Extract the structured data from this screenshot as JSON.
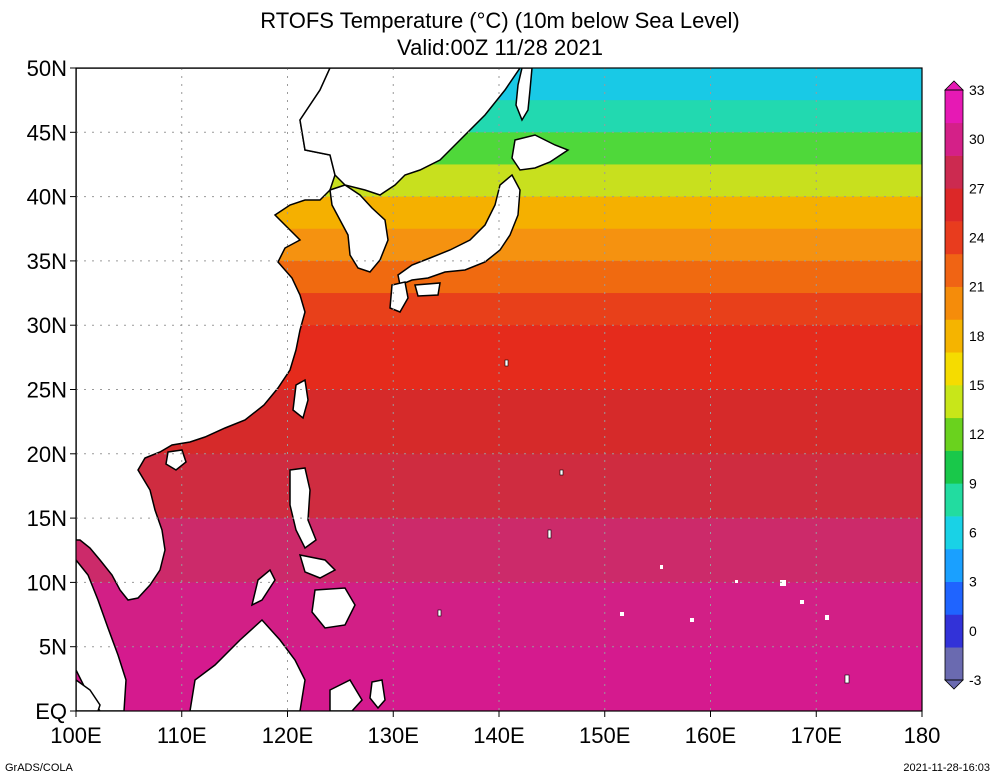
{
  "title": "RTOFS Temperature (°C) (10m below Sea Level)",
  "subtitle": "Valid:00Z 11/28 2021",
  "footer_left": "GrADS/COLA",
  "footer_right": "2021-11-28-16:03",
  "map": {
    "lon_range": [
      100,
      180
    ],
    "lat_range": [
      0,
      50
    ],
    "y_ticks": [
      {
        "lat": 50,
        "label": "50N"
      },
      {
        "lat": 45,
        "label": "45N"
      },
      {
        "lat": 40,
        "label": "40N"
      },
      {
        "lat": 35,
        "label": "35N"
      },
      {
        "lat": 30,
        "label": "30N"
      },
      {
        "lat": 25,
        "label": "25N"
      },
      {
        "lat": 20,
        "label": "20N"
      },
      {
        "lat": 15,
        "label": "15N"
      },
      {
        "lat": 10,
        "label": "10N"
      },
      {
        "lat": 5,
        "label": "5N"
      },
      {
        "lat": 0,
        "label": "EQ"
      }
    ],
    "x_ticks": [
      {
        "lon": 100,
        "label": "100E"
      },
      {
        "lon": 110,
        "label": "110E"
      },
      {
        "lon": 120,
        "label": "120E"
      },
      {
        "lon": 130,
        "label": "130E"
      },
      {
        "lon": 140,
        "label": "140E"
      },
      {
        "lon": 150,
        "label": "150E"
      },
      {
        "lon": 160,
        "label": "160E"
      },
      {
        "lon": 170,
        "label": "170E"
      },
      {
        "lon": 180,
        "label": "180"
      }
    ],
    "temperature_bands": [
      {
        "lat": [
          47.5,
          50
        ],
        "temp": 6,
        "color": "#19c9e6"
      },
      {
        "lat": [
          45,
          47.5
        ],
        "temp": 8,
        "color": "#22d9b0"
      },
      {
        "lat": [
          42.5,
          45
        ],
        "temp": 11,
        "color": "#4fd83a"
      },
      {
        "lat": [
          40,
          42.5
        ],
        "temp": 15,
        "color": "#c8e01e"
      },
      {
        "lat": [
          37.5,
          40
        ],
        "temp": 18,
        "color": "#f5b000"
      },
      {
        "lat": [
          35,
          37.5
        ],
        "temp": 20,
        "color": "#f59210"
      },
      {
        "lat": [
          32.5,
          35
        ],
        "temp": 22,
        "color": "#f06a10"
      },
      {
        "lat": [
          30,
          32.5
        ],
        "temp": 23,
        "color": "#e8401a"
      },
      {
        "lat": [
          25,
          30
        ],
        "temp": 25,
        "color": "#e52b1c"
      },
      {
        "lat": [
          20,
          25
        ],
        "temp": 26,
        "color": "#d62a2a"
      },
      {
        "lat": [
          15,
          20
        ],
        "temp": 27,
        "color": "#cf2c40"
      },
      {
        "lat": [
          10,
          15
        ],
        "temp": 28,
        "color": "#cc2a6a"
      },
      {
        "lat": [
          5,
          10
        ],
        "temp": 29,
        "color": "#d21f86"
      },
      {
        "lat": [
          0,
          5
        ],
        "temp": 30,
        "color": "#d51a8e"
      }
    ]
  },
  "colorbar": {
    "labels": [
      "33",
      "30",
      "27",
      "24",
      "21",
      "18",
      "15",
      "12",
      "9",
      "6",
      "3",
      "0",
      "-3"
    ],
    "colors": [
      "#6a6ab0",
      "#3232d8",
      "#1f64ff",
      "#1aa0ff",
      "#19d2e6",
      "#22dca0",
      "#19c84a",
      "#6ad21e",
      "#c8e619",
      "#f5dc00",
      "#f5b400",
      "#f58c0a",
      "#f06414",
      "#e83c1e",
      "#dc2828",
      "#cc2a50",
      "#d42088",
      "#e619b4"
    ]
  }
}
